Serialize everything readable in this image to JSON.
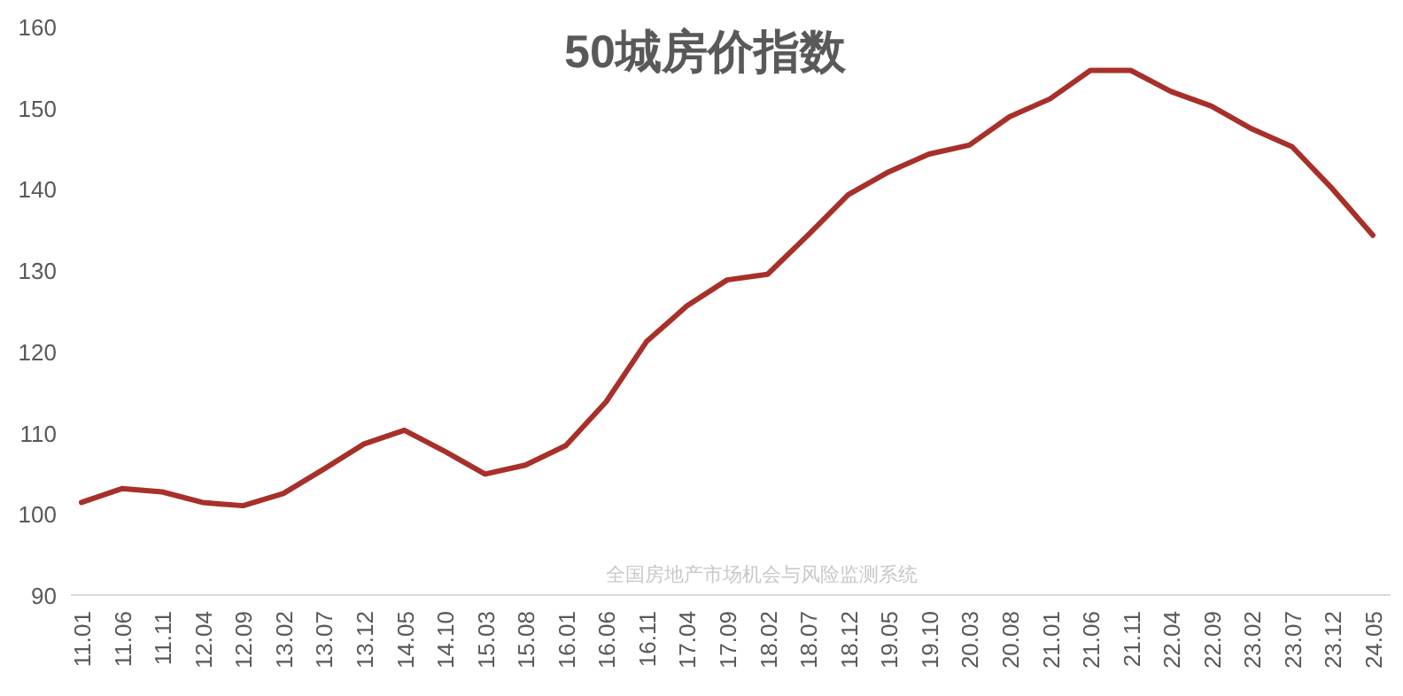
{
  "chart_data": {
    "type": "line",
    "title": "50城房价指数",
    "categories": [
      "11.01",
      "11.06",
      "11.11",
      "12.04",
      "12.09",
      "13.02",
      "13.07",
      "13.12",
      "14.05",
      "14.10",
      "15.03",
      "15.08",
      "16.01",
      "16.06",
      "16.11",
      "17.04",
      "17.09",
      "18.02",
      "18.07",
      "18.12",
      "19.05",
      "19.10",
      "20.03",
      "20.08",
      "21.01",
      "21.06",
      "21.11",
      "22.04",
      "22.09",
      "23.02",
      "23.07",
      "23.12",
      "24.05"
    ],
    "series": [
      {
        "color": "#a8302a",
        "values": [
          101.4,
          103.1,
          102.7,
          101.4,
          101.0,
          102.5,
          105.5,
          108.6,
          110.3,
          107.7,
          104.9,
          106.0,
          108.4,
          113.8,
          121.2,
          125.6,
          128.8,
          129.5,
          134.3,
          139.3,
          142.1,
          144.3,
          145.4,
          148.9,
          151.1,
          154.6,
          154.6,
          152.0,
          150.2,
          147.4,
          145.2,
          140.0,
          134.3
        ]
      }
    ],
    "ylim": [
      90,
      160
    ],
    "yticks": [
      90,
      100,
      110,
      120,
      130,
      140,
      150,
      160
    ],
    "grid": false,
    "marker": "none",
    "line_style": "solid",
    "annotations": [
      "全国房地产市场机会与风险监测系统"
    ]
  }
}
